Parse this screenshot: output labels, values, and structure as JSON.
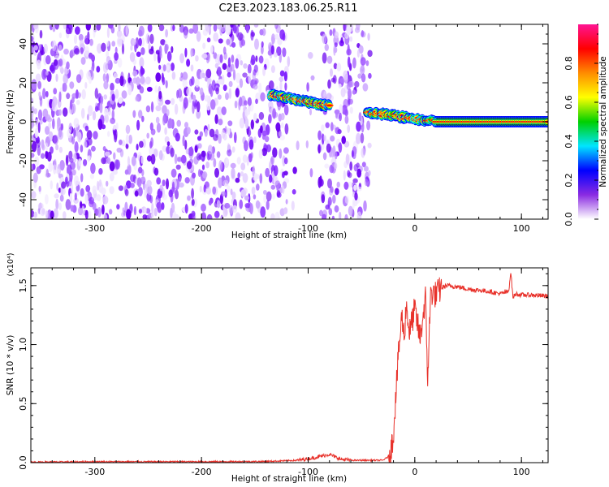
{
  "figure": {
    "title": "C2E3.2023.183.06.25.R11"
  },
  "chart_data": [
    {
      "type": "heatmap",
      "name": "spectrogram",
      "title": "C2E3.2023.183.06.25.R11",
      "xlabel": "Height of straight line (km)",
      "ylabel": "Frequency (Hz)",
      "xlim": [
        -360,
        125
      ],
      "ylim": [
        -50,
        50
      ],
      "x_ticks": [
        -300,
        -200,
        -100,
        0,
        100
      ],
      "y_ticks": [
        -40,
        -20,
        0,
        20,
        40
      ],
      "x_tick_labels": [
        "-300",
        "-200",
        "-100",
        "0",
        "100"
      ],
      "y_tick_labels": [
        "-40",
        "-20",
        "0",
        "20",
        "40"
      ],
      "noise_region": {
        "x": [
          -360,
          -42
        ],
        "gap_x": [
          -120,
          -90
        ]
      },
      "features": [
        {
          "x_start": -135,
          "x_end": -80,
          "y_start": 14,
          "y_end": 8
        },
        {
          "x_start": -45,
          "x_end": 20,
          "y_start": 5,
          "y_end": 0
        },
        {
          "x_start": 20,
          "x_end": 125,
          "y_start": 0,
          "y_end": 0
        }
      ],
      "colorbar": {
        "label": "Normalized spectral amplitude",
        "range": [
          0,
          1
        ],
        "ticks": [
          0.0,
          0.2,
          0.4,
          0.6,
          0.8
        ],
        "tick_labels": [
          "0.0",
          "0.2",
          "0.4",
          "0.6",
          "0.8"
        ],
        "colors": [
          "#ffffff",
          "#8a2be2",
          "#0000ff",
          "#00e5ff",
          "#00d000",
          "#ffff00",
          "#ff8c00",
          "#ff0000",
          "#ff1493"
        ]
      }
    },
    {
      "type": "line",
      "name": "snr",
      "xlabel": "Height of straight line (km)",
      "ylabel": "SNR (10 * v/v)",
      "multiplier_label": "(x10⁴)",
      "xlim": [
        -360,
        125
      ],
      "ylim": [
        0,
        1.65
      ],
      "x_ticks": [
        -300,
        -200,
        -100,
        0,
        100
      ],
      "y_ticks": [
        0.0,
        0.5,
        1.0,
        1.5
      ],
      "x_tick_labels": [
        "-300",
        "-200",
        "-100",
        "0",
        "100"
      ],
      "y_tick_labels": [
        "0.0",
        "0.5",
        "1.0",
        "1.5"
      ],
      "color": "#e8312a",
      "x": [
        -360,
        -300,
        -200,
        -140,
        -110,
        -95,
        -80,
        -70,
        -60,
        -50,
        -40,
        -30,
        -25,
        -22,
        -20,
        -18,
        -15,
        -12,
        -10,
        -8,
        -5,
        0,
        5,
        10,
        12,
        15,
        20,
        25,
        30,
        40,
        50,
        60,
        70,
        80,
        88,
        90,
        92,
        95,
        100,
        110,
        125
      ],
      "y": [
        0.005,
        0.008,
        0.008,
        0.01,
        0.02,
        0.04,
        0.07,
        0.03,
        0.02,
        0.02,
        0.02,
        0.02,
        0.05,
        0.12,
        0.25,
        0.55,
        0.95,
        1.25,
        1.05,
        1.35,
        1.1,
        1.3,
        1.05,
        1.4,
        0.7,
        1.45,
        1.42,
        1.48,
        1.5,
        1.49,
        1.47,
        1.46,
        1.45,
        1.43,
        1.45,
        1.62,
        1.4,
        1.43,
        1.42,
        1.42,
        1.41
      ]
    }
  ]
}
